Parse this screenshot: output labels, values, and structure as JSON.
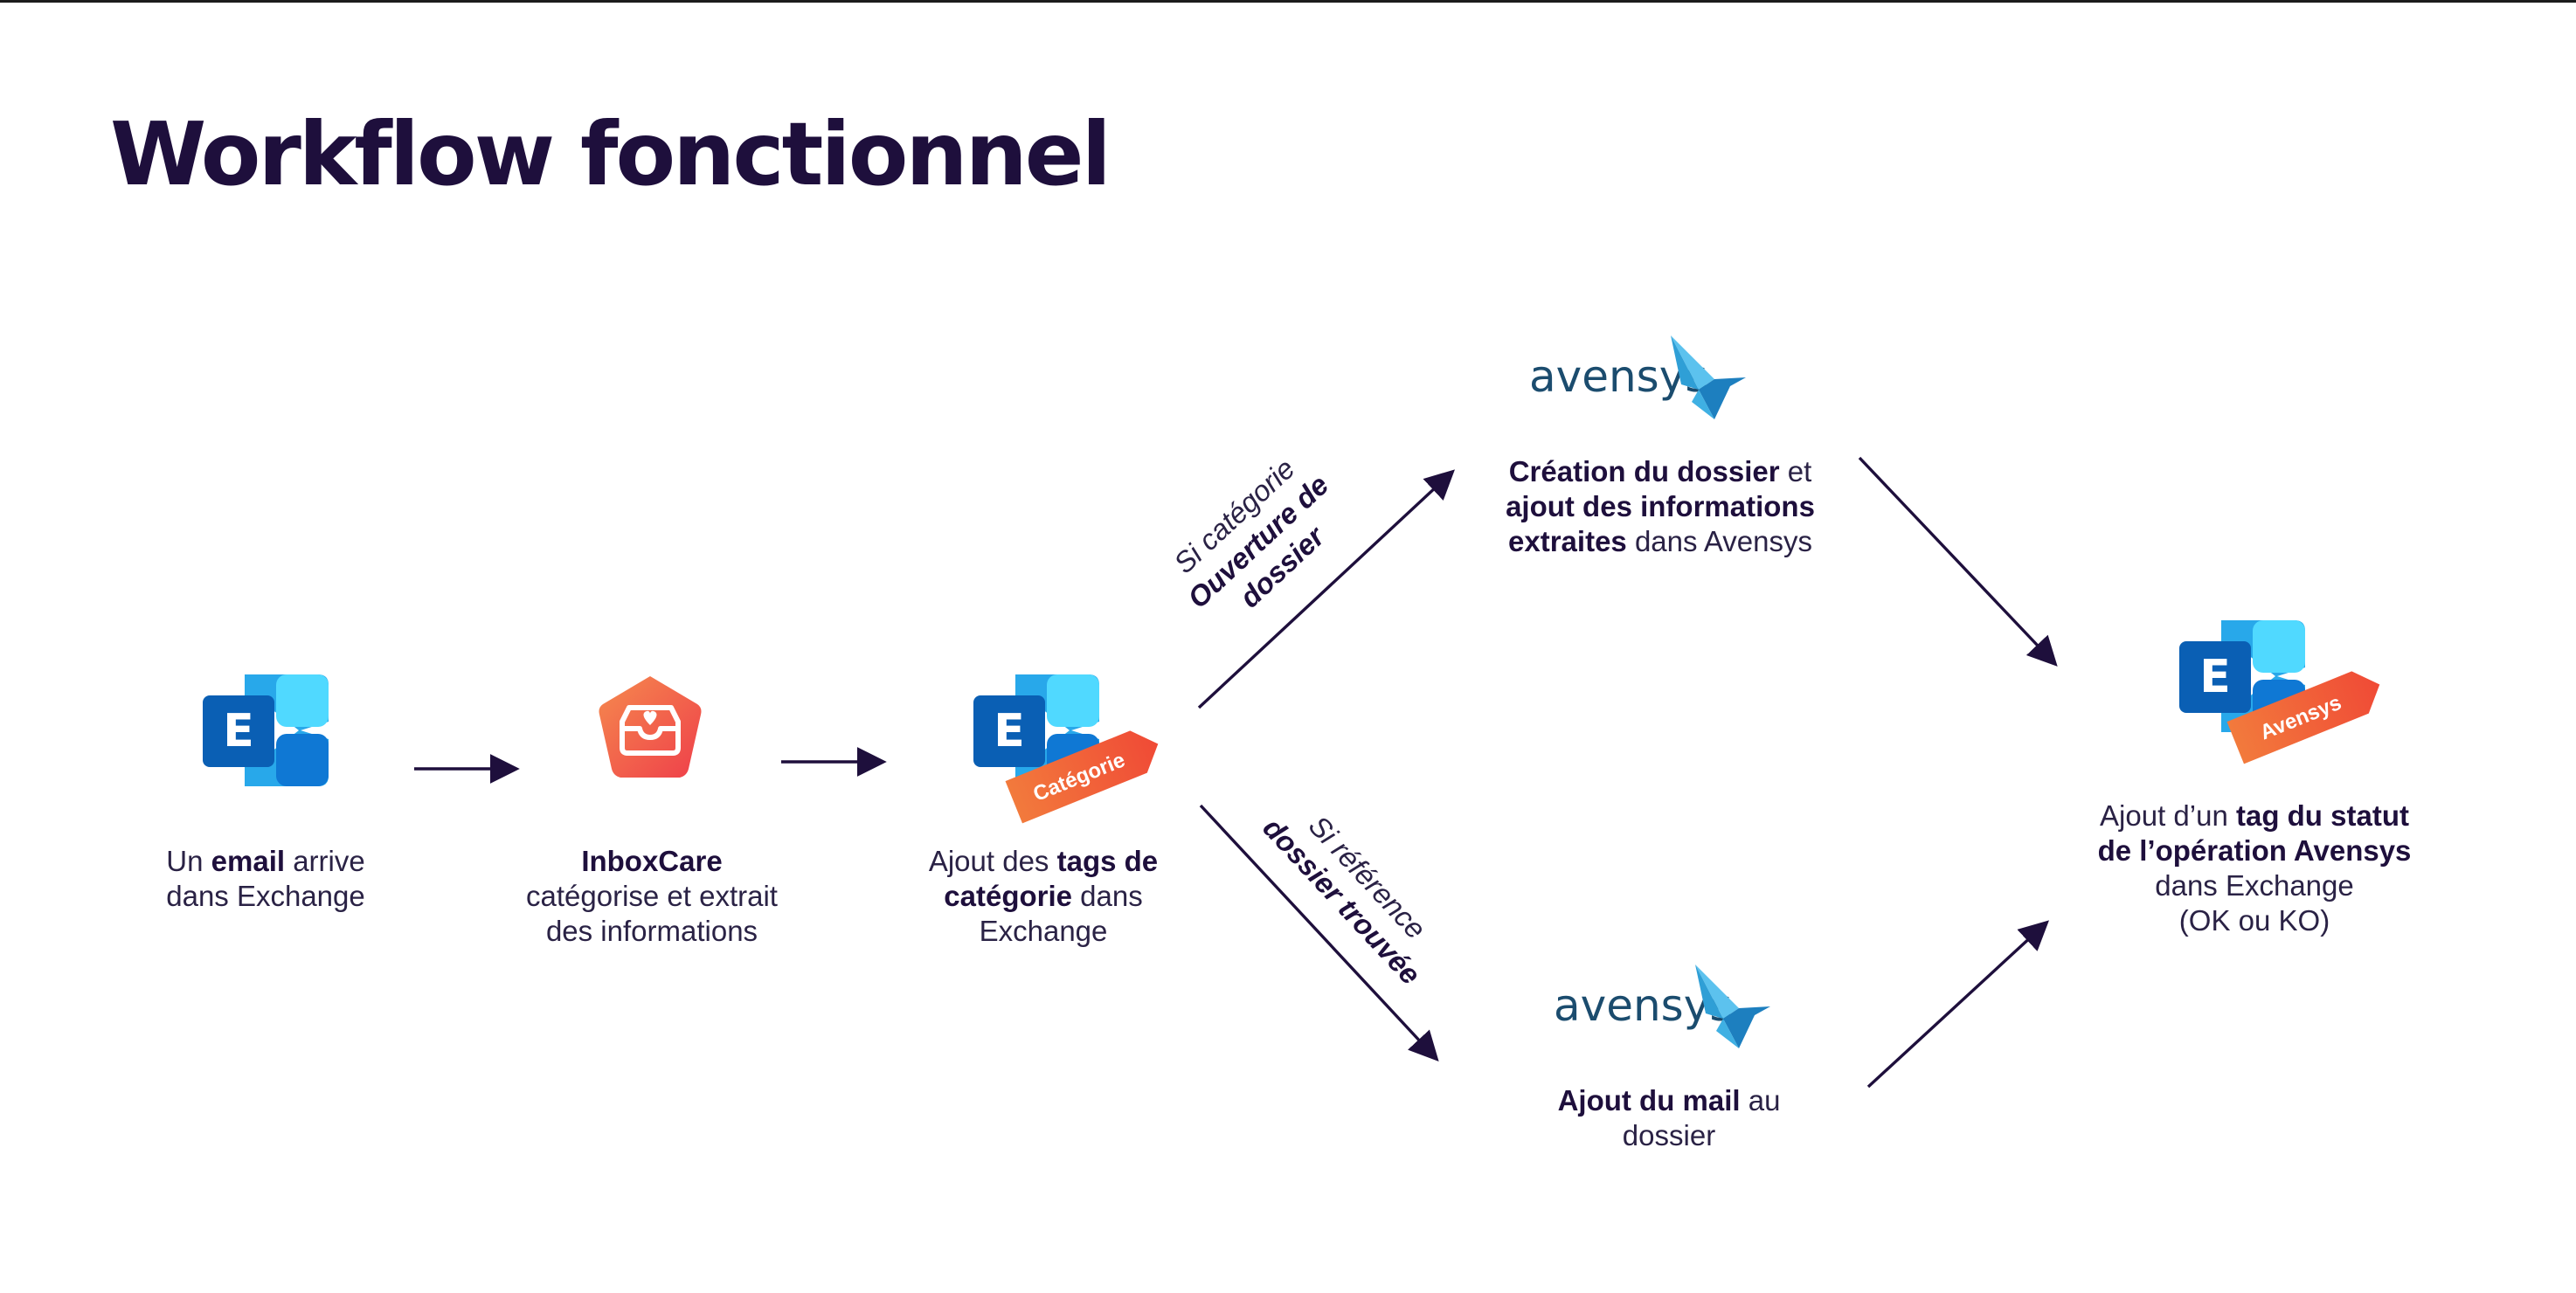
{
  "title": "Workflow fonctionnel",
  "steps": {
    "email": {
      "line1_pre": "Un ",
      "line1_bold": "email",
      "line1_post": " arrive",
      "line2": "dans Exchange"
    },
    "inboxcare": {
      "line1_bold": "InboxCare",
      "line2": "catégorise et extrait",
      "line3": "des informations"
    },
    "tags": {
      "line1_pre": "Ajout des ",
      "line1_bold": "tags de",
      "line2_bold": "catégorie",
      "line2_post": " dans",
      "line3": "Exchange",
      "badge": "Catégorie"
    },
    "creation": {
      "line1_bold": "Création du dossier",
      "line1_post": " et",
      "line2_bold": "ajout des informations",
      "line3_bold": "extraites",
      "line3_post": " dans Avensys"
    },
    "ajout_mail": {
      "line1_bold": "Ajout du mail",
      "line1_post": " au",
      "line2": "dossier"
    },
    "status": {
      "line1_pre": "Ajout d’un ",
      "line1_bold": "tag du statut",
      "line2_bold": "de l’opération Avensys",
      "line3": "dans Exchange",
      "line4": "(OK ou KO)",
      "badge": "Avensys"
    }
  },
  "conditions": {
    "upper": {
      "line1": "Si catégorie",
      "line2": "Ouverture de",
      "line3": "dossier"
    },
    "lower": {
      "line1": "Si référence",
      "line2": "dossier trouvée"
    }
  },
  "logos": {
    "avensys_text": "avensys",
    "exchange_letter": "E"
  },
  "colors": {
    "title": "#1e0f3c",
    "arrow": "#1e0f3c",
    "exchange_blue_dark": "#0a5fb4",
    "exchange_blue_light": "#28a8ea",
    "exchange_blue_mid": "#0f78d4",
    "tag_orange": "#f0673a",
    "inboxcare_red": "#f25c43",
    "avensys_text": "#1b4c6e",
    "avensys_bird": "#2f9fd6"
  }
}
